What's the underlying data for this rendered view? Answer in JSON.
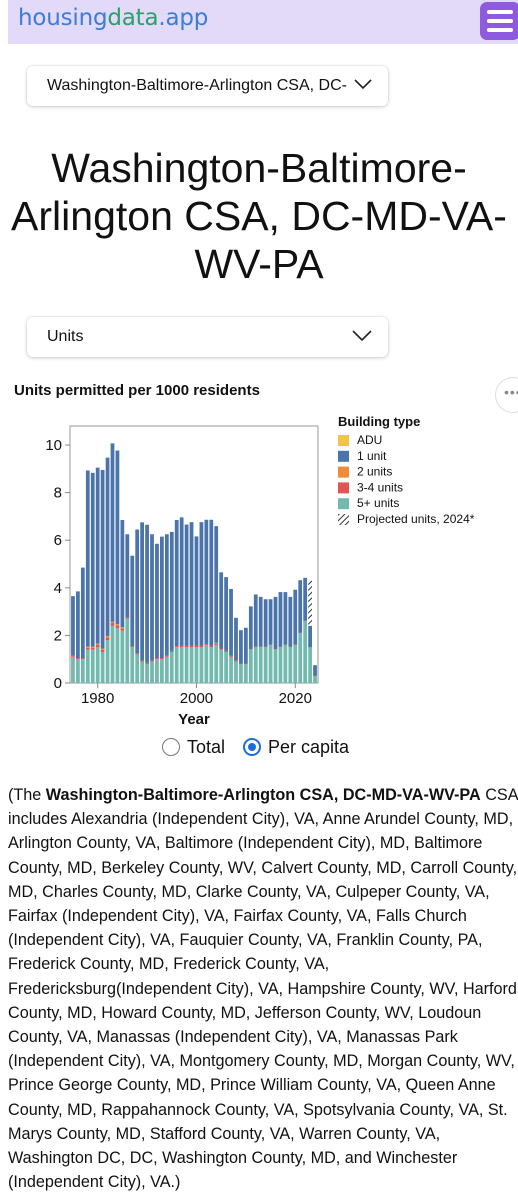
{
  "header": {
    "logo_part1": "housing",
    "logo_part2": "data",
    "logo_part3": ".app"
  },
  "region_select": {
    "value": "Washington-Baltimore-Arlington CSA, DC-MD-VA-WV-PA"
  },
  "page_title": "Washington-Baltimore-Arlington CSA, DC-MD-VA-WV-PA",
  "metric_select": {
    "value": "Units"
  },
  "side_button": {
    "label": "•••"
  },
  "chart_data": {
    "type": "bar",
    "stacked": true,
    "title": "Units permitted per 1000 residents",
    "xlabel": "Year",
    "ylabel": "",
    "ylim": [
      0,
      10.8
    ],
    "yticks": [
      0,
      2,
      4,
      6,
      8,
      10
    ],
    "xticks": [
      1980,
      2000,
      2020
    ],
    "x": [
      1975,
      1976,
      1977,
      1978,
      1979,
      1980,
      1981,
      1982,
      1983,
      1984,
      1985,
      1986,
      1987,
      1988,
      1989,
      1990,
      1991,
      1992,
      1993,
      1994,
      1995,
      1996,
      1997,
      1998,
      1999,
      2000,
      2001,
      2002,
      2003,
      2004,
      2005,
      2006,
      2007,
      2008,
      2009,
      2010,
      2011,
      2012,
      2013,
      2014,
      2015,
      2016,
      2017,
      2018,
      2019,
      2020,
      2021,
      2022,
      2023,
      2024
    ],
    "series": [
      {
        "name": "ADU",
        "color": "#f0c640",
        "values": [
          0,
          0,
          0,
          0,
          0,
          0,
          0,
          0,
          0,
          0,
          0,
          0,
          0,
          0,
          0,
          0,
          0,
          0,
          0,
          0,
          0,
          0,
          0,
          0,
          0,
          0,
          0,
          0,
          0,
          0,
          0,
          0,
          0,
          0,
          0,
          0,
          0,
          0,
          0,
          0,
          0,
          0,
          0,
          0,
          0,
          0,
          0,
          0,
          0,
          0
        ]
      },
      {
        "name": "1 unit",
        "color": "#4a74aa",
        "values": [
          2.5,
          2.8,
          3.8,
          7.4,
          7.3,
          7.4,
          7.5,
          7.5,
          7.5,
          7.3,
          4.5,
          3.5,
          3.8,
          5.2,
          5.8,
          5.8,
          5.3,
          4.8,
          5.1,
          5.1,
          5.0,
          5.3,
          5.4,
          5.1,
          5.2,
          4.6,
          5.2,
          5.2,
          5.3,
          4.9,
          3.2,
          3.1,
          2.8,
          1.8,
          1.4,
          1.5,
          1.8,
          2.2,
          2.1,
          2.0,
          1.9,
          2.2,
          2.3,
          2.2,
          2.1,
          2.3,
          2.2,
          1.8,
          0.9,
          0.45
        ]
      },
      {
        "name": "2 units",
        "color": "#f08b3a",
        "values": [
          0,
          0,
          0,
          0.05,
          0.05,
          0.05,
          0.05,
          0.05,
          0.05,
          0.05,
          0.05,
          0,
          0,
          0,
          0,
          0,
          0,
          0,
          0,
          0,
          0,
          0,
          0,
          0,
          0,
          0,
          0,
          0,
          0,
          0.02,
          0,
          0,
          0,
          0,
          0,
          0,
          0,
          0,
          0,
          0,
          0,
          0,
          0,
          0,
          0,
          0,
          0,
          0,
          0,
          0
        ]
      },
      {
        "name": "3-4 units",
        "color": "#e05654",
        "values": [
          0.05,
          0.05,
          0.05,
          0.08,
          0.08,
          0.1,
          0.1,
          0.12,
          0.12,
          0.12,
          0.1,
          0.05,
          0.05,
          0.05,
          0.05,
          0.05,
          0.05,
          0.05,
          0.05,
          0.05,
          0.05,
          0.05,
          0.06,
          0.06,
          0.06,
          0.06,
          0.06,
          0.06,
          0.06,
          0.07,
          0.05,
          0.05,
          0.05,
          0.04,
          0.02,
          0.02,
          0.02,
          0.02,
          0.02,
          0.02,
          0.02,
          0.02,
          0.02,
          0.02,
          0.02,
          0.02,
          0.02,
          0.02,
          0,
          0
        ]
      },
      {
        "name": "5+ units",
        "color": "#72b9ae",
        "values": [
          1.1,
          1.0,
          1.0,
          1.4,
          1.4,
          1.5,
          1.3,
          1.8,
          2.4,
          2.3,
          2.2,
          2.7,
          1.5,
          1.2,
          0.9,
          0.8,
          0.9,
          1.0,
          1.0,
          1.1,
          1.3,
          1.5,
          1.5,
          1.5,
          1.5,
          1.5,
          1.5,
          1.6,
          1.5,
          1.6,
          1.4,
          1.3,
          1.1,
          0.9,
          0.8,
          0.8,
          1.4,
          1.5,
          1.5,
          1.5,
          1.6,
          1.4,
          1.5,
          1.6,
          1.5,
          1.6,
          2.1,
          2.6,
          1.5,
          0.3
        ]
      },
      {
        "name": "Projected units, 2024*",
        "pattern": "hatch",
        "values": [
          0,
          0,
          0,
          0,
          0,
          0,
          0,
          0,
          0,
          0,
          0,
          0,
          0,
          0,
          0,
          0,
          0,
          0,
          0,
          0,
          0,
          0,
          0,
          0,
          0,
          0,
          0,
          0,
          0,
          0,
          0,
          0,
          0,
          0,
          0,
          0,
          0,
          0,
          0,
          0,
          0,
          0,
          0,
          0,
          0,
          0,
          0,
          0,
          1.9,
          0
        ]
      }
    ],
    "legend": {
      "title": "Building type",
      "placement": "right"
    },
    "grid": false
  },
  "radio": {
    "total_label": "Total",
    "per_capita_label": "Per capita",
    "selected": "Per capita"
  },
  "description": {
    "open": "(The ",
    "bold": "Washington-Baltimore-Arlington CSA, DC-MD-VA-WV-PA",
    "rest": " CSA includes Alexandria (Independent City), VA, Anne Arundel County, MD, Arlington County, VA, Baltimore (Independent City), MD, Baltimore County, MD, Berkeley County, WV, Calvert County, MD, Carroll County, MD, Charles County, MD, Clarke County, VA, Culpeper County, VA, Fairfax (Independent City), VA, Fairfax County, VA, Falls Church (Independent City), VA, Fauquier County, VA, Franklin County, PA, Frederick County, MD, Frederick County, VA, Fredericksburg(Independent City), VA, Hampshire County, WV, Harford County, MD, Howard County, MD, Jefferson County, WV, Loudoun County, VA, Manassas (Independent City), VA, Manassas Park (Independent City), VA, Montgomery County, MD, Morgan County, WV, Prince George County, MD, Prince William County, VA, Queen Anne County, MD, Rappahannock County, VA, Spotsylvania County, VA, St. Marys County, MD, Stafford County, VA, Warren County, VA, Washington DC, DC, Washington County, MD, and Winchester (Independent City), VA.)"
  }
}
